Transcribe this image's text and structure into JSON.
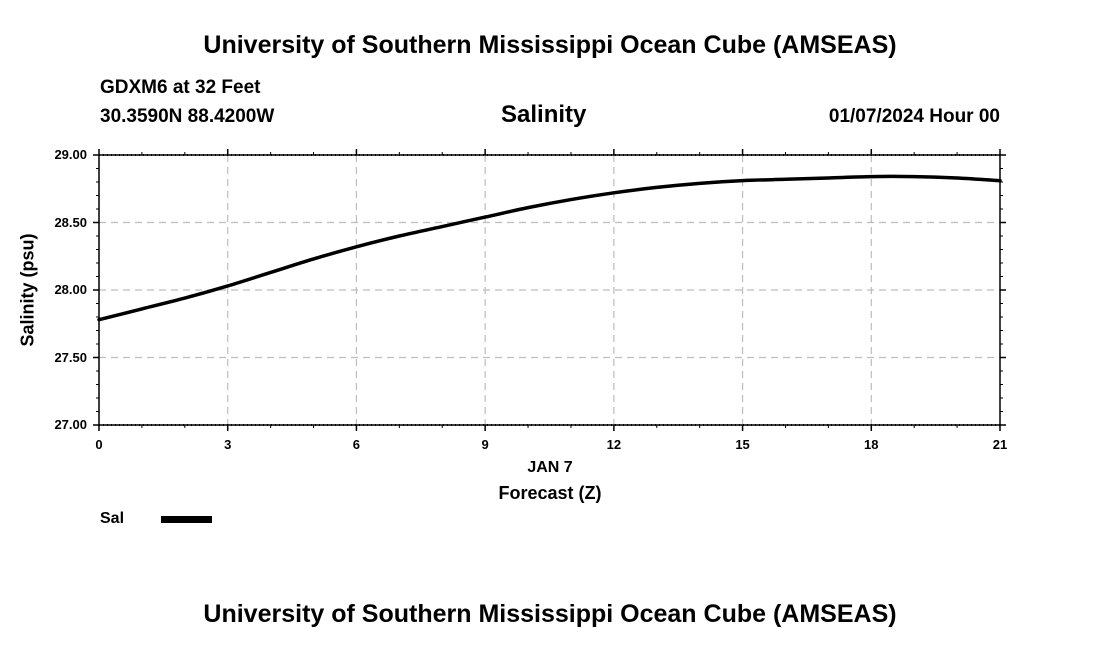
{
  "header": {
    "title_top": "University of Southern Mississippi Ocean Cube (AMSEAS)",
    "title_bottom": "University of Southern Mississippi Ocean Cube (AMSEAS)",
    "station": "GDXM6 at 32 Feet",
    "coords": "30.3590N  88.4200W",
    "datetime": "01/07/2024 Hour 00"
  },
  "chart_data": {
    "type": "line",
    "title": "Salinity",
    "xlabel": "Forecast (Z)",
    "xlabel_date": "JAN 7",
    "ylabel": "Salinity (psu)",
    "xlim": [
      0,
      21
    ],
    "ylim": [
      27.0,
      29.0
    ],
    "x_ticks": [
      "0",
      "3",
      "6",
      "9",
      "12",
      "15",
      "18",
      "21"
    ],
    "y_ticks": [
      "29.00",
      "28.50",
      "28.00",
      "27.50",
      "27.00"
    ],
    "grid": true,
    "legend": {
      "label": "Sal",
      "placement": "bottom-left"
    },
    "series": [
      {
        "name": "Sal",
        "x": [
          0,
          1,
          2,
          3,
          4,
          5,
          6,
          7,
          8,
          9,
          10,
          11,
          12,
          13,
          14,
          15,
          16,
          17,
          18,
          19,
          20,
          21
        ],
        "values": [
          27.78,
          27.86,
          27.94,
          28.03,
          28.13,
          28.23,
          28.32,
          28.4,
          28.47,
          28.54,
          28.61,
          28.67,
          28.72,
          28.76,
          28.79,
          28.81,
          28.82,
          28.83,
          28.84,
          28.84,
          28.83,
          28.81
        ]
      }
    ]
  }
}
